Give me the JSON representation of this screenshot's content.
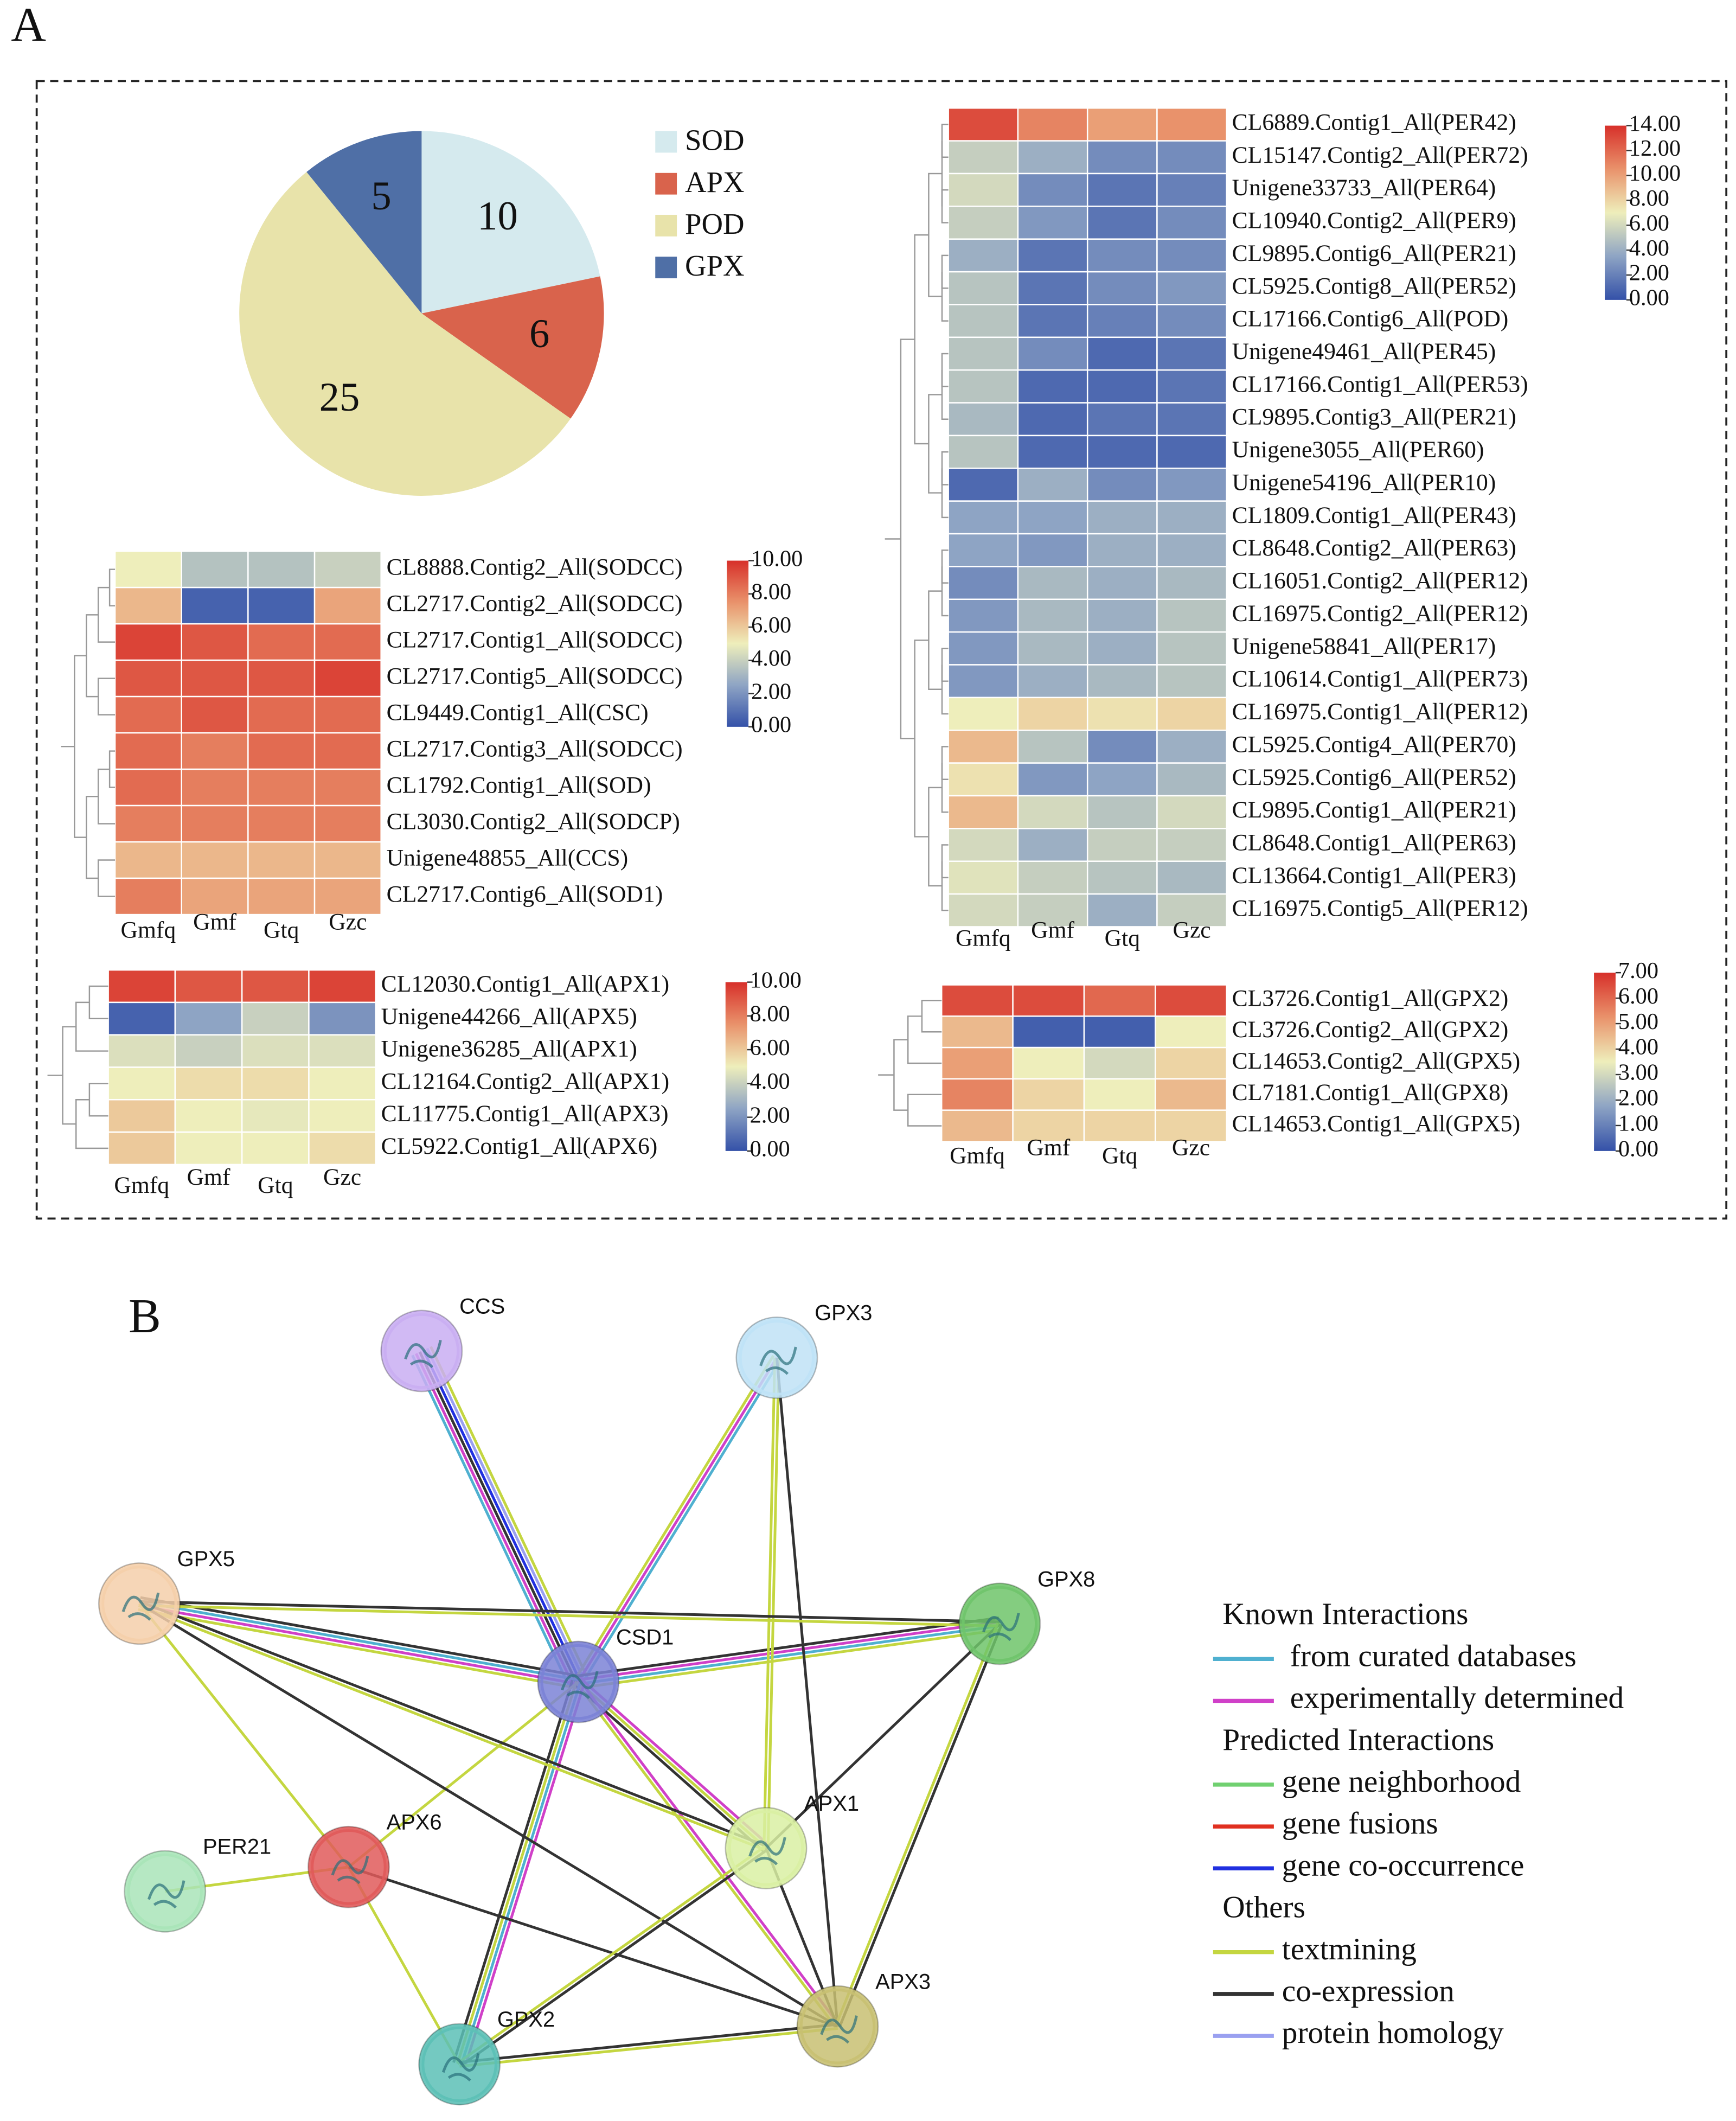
{
  "panel_labels": [
    "A",
    "B"
  ],
  "chart_data": [
    {
      "type": "pie",
      "categories": [
        "SOD",
        "APX",
        "POD",
        "GPX"
      ],
      "values": [
        10,
        6,
        25,
        5
      ],
      "colors": [
        "#d5eaee",
        "#d9634c",
        "#e8e3aa",
        "#4f6fa6"
      ]
    },
    {
      "type": "heatmap",
      "columns": [
        "Gmfq",
        "Gmf",
        "Gtq",
        "Gzc"
      ],
      "rows": [
        "CL8888.Contig2_All(SODCC)",
        "CL2717.Contig2_All(SODCC)",
        "CL2717.Contig1_All(SODCC)",
        "CL2717.Contig5_All(SODCC)",
        "CL9449.Contig1_All(CSC)",
        "CL2717.Contig3_All(SODCC)",
        "CL1792.Contig1_All(SOD)",
        "CL3030.Contig2_All(SODCP)",
        "Unigene48855_All(CCS)",
        "CL2717.Contig6_All(SOD1)"
      ],
      "values": [
        [
          5,
          3.5,
          3.5,
          4
        ],
        [
          6.5,
          0.5,
          0.5,
          7
        ],
        [
          9.5,
          9,
          8.5,
          8.5
        ],
        [
          9,
          9,
          9,
          9.5
        ],
        [
          8.5,
          9,
          8.5,
          8.5
        ],
        [
          8.5,
          8,
          8.5,
          8.5
        ],
        [
          8.5,
          8,
          8,
          8
        ],
        [
          8,
          8,
          8,
          8
        ],
        [
          6.5,
          6.5,
          6.5,
          6.5
        ],
        [
          8,
          7,
          7,
          7
        ]
      ],
      "zlim": [
        0,
        10
      ],
      "zticks": [
        {
          "value": 0,
          "label": "0.00"
        },
        {
          "value": 2,
          "label": "2.00"
        },
        {
          "value": 4,
          "label": "4.00"
        },
        {
          "value": 6,
          "label": "6.00"
        },
        {
          "value": 8,
          "label": "8.00"
        },
        {
          "value": 10,
          "label": "10.00"
        }
      ],
      "colors": [
        "#3451a8",
        "#8ea4c4",
        "#eeeebb",
        "#e9926b",
        "#d7302a"
      ]
    },
    {
      "type": "heatmap",
      "columns": [
        "Gmfq",
        "Gmf",
        "Gtq",
        "Gzc"
      ],
      "rows": [
        "CL6889.Contig1_All(PER42)",
        "CL15147.Contig2_All(PER72)",
        "Unigene33733_All(PER64)",
        "CL10940.Contig2_All(PER9)",
        "CL9895.Contig6_All(PER21)",
        "CL5925.Contig8_All(PER52)",
        "CL17166.Contig6_All(POD)",
        "Unigene49461_All(PER45)",
        "CL17166.Contig1_All(PER53)",
        "CL9895.Contig3_All(PER21)",
        "Unigene3055_All(PER60)",
        "Unigene54196_All(PER10)",
        "CL1809.Contig1_All(PER43)",
        "CL8648.Contig2_All(PER63)",
        "CL16051.Contig2_All(PER12)",
        "CL16975.Contig2_All(PER12)",
        "Unigene58841_All(PER17)",
        "CL10614.Contig1_All(PER73)",
        "CL16975.Contig1_All(PER12)",
        "CL5925.Contig4_All(PER70)",
        "CL5925.Contig6_All(PER52)",
        "CL9895.Contig1_All(PER21)",
        "CL8648.Contig1_All(PER63)",
        "CL13664.Contig1_All(PER3)",
        "CL16975.Contig5_All(PER12)"
      ],
      "values": [
        [
          13,
          11,
          10,
          10.5
        ],
        [
          5.5,
          4,
          2.5,
          2.5
        ],
        [
          6,
          2.5,
          1.5,
          2
        ],
        [
          5.5,
          3,
          1.5,
          2.5
        ],
        [
          4,
          1.5,
          2.5,
          2.5
        ],
        [
          5,
          1.5,
          2.5,
          3
        ],
        [
          5,
          1.5,
          2,
          2.5
        ],
        [
          5,
          2.5,
          1,
          1.5
        ],
        [
          5,
          1,
          1,
          1.5
        ],
        [
          4.5,
          1,
          1.5,
          1.5
        ],
        [
          5,
          1,
          1,
          1
        ],
        [
          1,
          4,
          2.5,
          3
        ],
        [
          3.5,
          3.5,
          4,
          4
        ],
        [
          3.5,
          3,
          4,
          4
        ],
        [
          2.5,
          4.5,
          4,
          4.5
        ],
        [
          3,
          4.5,
          4,
          5
        ],
        [
          3,
          4.5,
          4,
          5
        ],
        [
          3,
          4,
          4.5,
          5
        ],
        [
          7,
          8,
          7.5,
          8
        ],
        [
          9,
          5,
          2.5,
          4
        ],
        [
          7.5,
          3,
          3.5,
          4.5
        ],
        [
          9,
          6,
          5,
          6
        ],
        [
          6,
          4,
          5.5,
          5.5
        ],
        [
          6.5,
          5.5,
          5,
          4.5
        ],
        [
          6,
          5.5,
          4,
          5.5
        ]
      ],
      "zlim": [
        0,
        14
      ],
      "zticks": [
        {
          "value": 0,
          "label": "0.00"
        },
        {
          "value": 2,
          "label": "2.00"
        },
        {
          "value": 4,
          "label": "4.00"
        },
        {
          "value": 6,
          "label": "6.00"
        },
        {
          "value": 8,
          "label": "8.00"
        },
        {
          "value": 10,
          "label": "10.00"
        },
        {
          "value": 12,
          "label": "12.00"
        },
        {
          "value": 14,
          "label": "14.00"
        }
      ],
      "colors": [
        "#3451a8",
        "#8ea4c4",
        "#eeeebb",
        "#e9926b",
        "#d7302a"
      ]
    },
    {
      "type": "heatmap",
      "columns": [
        "Gmfq",
        "Gmf",
        "Gtq",
        "Gzc"
      ],
      "rows": [
        "CL12030.Contig1_All(APX1)",
        "Unigene44266_All(APX5)",
        "Unigene36285_All(APX1)",
        "CL12164.Contig2_All(APX1)",
        "CL11775.Contig1_All(APX3)",
        "CL5922.Contig1_All(APX6)"
      ],
      "values": [
        [
          9.5,
          9,
          9,
          9.5
        ],
        [
          0.5,
          2.5,
          4,
          2
        ],
        [
          4.5,
          4,
          4.5,
          4.5
        ],
        [
          5,
          5.5,
          5.5,
          5
        ],
        [
          6,
          5,
          4.8,
          5
        ],
        [
          6,
          5,
          5,
          5.5
        ]
      ],
      "zlim": [
        0,
        10
      ],
      "zticks": [
        {
          "value": 0,
          "label": "0.00"
        },
        {
          "value": 2,
          "label": "2.00"
        },
        {
          "value": 4,
          "label": "4.00"
        },
        {
          "value": 6,
          "label": "6.00"
        },
        {
          "value": 8,
          "label": "8.00"
        },
        {
          "value": 10,
          "label": "10.00"
        }
      ],
      "colors": [
        "#3451a8",
        "#8ea4c4",
        "#eeeebb",
        "#e9926b",
        "#d7302a"
      ]
    },
    {
      "type": "heatmap",
      "columns": [
        "Gmfq",
        "Gmf",
        "Gtq",
        "Gzc"
      ],
      "rows": [
        "CL3726.Contig1_All(GPX2)",
        "CL3726.Contig2_All(GPX2)",
        "CL14653.Contig2_All(GPX5)",
        "CL7181.Contig1_All(GPX8)",
        "CL14653.Contig1_All(GPX5)"
      ],
      "values": [
        [
          6.5,
          6.5,
          6,
          6.5
        ],
        [
          4.5,
          0.3,
          0.3,
          3.5
        ],
        [
          5,
          3.5,
          3,
          4
        ],
        [
          5.5,
          4,
          3.5,
          4.5
        ],
        [
          4.5,
          4,
          4,
          4
        ]
      ],
      "zlim": [
        0,
        7
      ],
      "zticks": [
        {
          "value": 0,
          "label": "0.00"
        },
        {
          "value": 1,
          "label": "1.00"
        },
        {
          "value": 2,
          "label": "2.00"
        },
        {
          "value": 3,
          "label": "3.00"
        },
        {
          "value": 4,
          "label": "4.00"
        },
        {
          "value": 5,
          "label": "5.00"
        },
        {
          "value": 6,
          "label": "6.00"
        },
        {
          "value": 7,
          "label": "7.00"
        }
      ],
      "colors": [
        "#3451a8",
        "#8ea4c4",
        "#eeeebb",
        "#e9926b",
        "#d7302a"
      ]
    }
  ],
  "network": {
    "nodes": [
      {
        "label": "CCS",
        "color": "#c9aef2"
      },
      {
        "label": "GPX3",
        "color": "#bfe2f6"
      },
      {
        "label": "GPX5",
        "color": "#f5cfaa"
      },
      {
        "label": "GPX8",
        "color": "#6fc46a"
      },
      {
        "label": "CSD1",
        "color": "#7b82d6"
      },
      {
        "label": "APX1",
        "color": "#d9f0a3"
      },
      {
        "label": "APX6",
        "color": "#e05a5a"
      },
      {
        "label": "PER21",
        "color": "#a9e4b8"
      },
      {
        "label": "GPX2",
        "color": "#5cc0b6"
      },
      {
        "label": "APX3",
        "color": "#c8c072"
      }
    ],
    "legend": [
      {
        "title": "Known Interactions",
        "items": [
          {
            "label": "from curated databases",
            "color": "#4fb0d0"
          },
          {
            "label": "experimentally determined",
            "color": "#d040c8"
          }
        ]
      },
      {
        "title": "Predicted Interactions",
        "items": [
          {
            "label": "gene neighborhood",
            "color": "#70d070"
          },
          {
            "label": "gene fusions",
            "color": "#e03020"
          },
          {
            "label": "gene co-occurrence",
            "color": "#2030e0"
          }
        ]
      },
      {
        "title": "Others",
        "items": [
          {
            "label": "textmining",
            "color": "#c4d640"
          },
          {
            "label": "co-expression",
            "color": "#333333"
          },
          {
            "label": "protein homology",
            "color": "#9aa0f0"
          }
        ]
      }
    ],
    "edges": [
      {
        "source": "CSD1",
        "target": "CCS",
        "types": [
          "from curated databases",
          "experimentally determined",
          "co-expression",
          "gene co-occurrence",
          "protein homology",
          "textmining"
        ]
      },
      {
        "source": "CSD1",
        "target": "GPX3",
        "types": [
          "textmining",
          "experimentally determined",
          "from curated databases"
        ]
      },
      {
        "source": "CSD1",
        "target": "GPX5",
        "types": [
          "textmining",
          "experimentally determined",
          "from curated databases",
          "co-expression"
        ]
      },
      {
        "source": "CSD1",
        "target": "GPX8",
        "types": [
          "co-expression",
          "experimentally determined",
          "from curated databases",
          "textmining"
        ]
      },
      {
        "source": "CSD1",
        "target": "APX1",
        "types": [
          "experimentally determined",
          "textmining",
          "co-expression"
        ]
      },
      {
        "source": "CSD1",
        "target": "APX3",
        "types": [
          "experimentally determined",
          "textmining"
        ]
      },
      {
        "source": "CSD1",
        "target": "GPX2",
        "types": [
          "experimentally determined",
          "from curated databases",
          "textmining",
          "co-expression"
        ]
      },
      {
        "source": "CSD1",
        "target": "APX6",
        "types": [
          "textmining"
        ]
      },
      {
        "source": "GPX3",
        "target": "APX1",
        "types": [
          "textmining",
          "textmining"
        ]
      },
      {
        "source": "GPX3",
        "target": "APX3",
        "types": [
          "co-expression"
        ]
      },
      {
        "source": "GPX5",
        "target": "GPX8",
        "types": [
          "co-expression",
          "textmining"
        ]
      },
      {
        "source": "GPX5",
        "target": "APX1",
        "types": [
          "co-expression",
          "textmining"
        ]
      },
      {
        "source": "GPX5",
        "target": "APX3",
        "types": [
          "co-expression"
        ]
      },
      {
        "source": "GPX5",
        "target": "APX6",
        "types": [
          "textmining"
        ]
      },
      {
        "source": "GPX8",
        "target": "APX1",
        "types": [
          "co-expression"
        ]
      },
      {
        "source": "GPX8",
        "target": "APX3",
        "types": [
          "co-expression",
          "textmining"
        ]
      },
      {
        "source": "APX6",
        "target": "PER21",
        "types": [
          "textmining"
        ]
      },
      {
        "source": "APX6",
        "target": "GPX2",
        "types": [
          "textmining"
        ]
      },
      {
        "source": "APX6",
        "target": "APX3",
        "types": [
          "co-expression"
        ]
      },
      {
        "source": "APX1",
        "target": "GPX2",
        "types": [
          "co-expression",
          "textmining"
        ]
      },
      {
        "source": "GPX2",
        "target": "APX3",
        "types": [
          "co-expression",
          "textmining"
        ]
      },
      {
        "source": "APX1",
        "target": "APX3",
        "types": [
          "co-expression"
        ]
      }
    ]
  }
}
